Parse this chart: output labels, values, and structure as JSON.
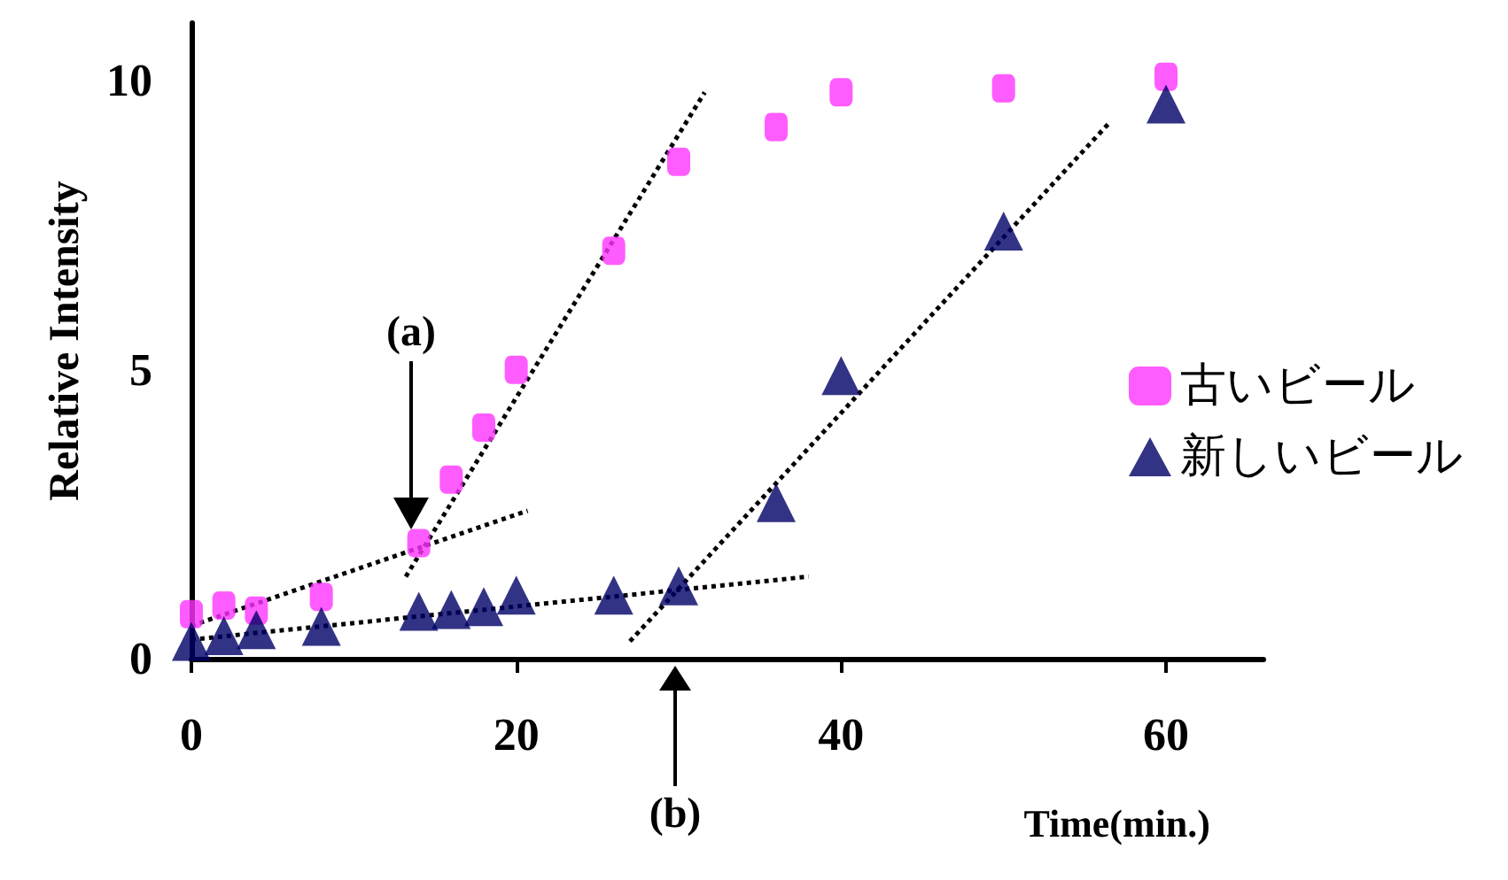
{
  "chart_data": {
    "type": "scatter",
    "xlabel": "Time(min.)",
    "ylabel": "Relative Intensity",
    "xlim": [
      0,
      66
    ],
    "xticks": [
      0,
      20,
      40,
      60
    ],
    "ylim": [
      0,
      11
    ],
    "yticks": [
      0,
      5,
      10
    ],
    "grid": false,
    "legend": "right",
    "series": [
      {
        "name": "古いビール",
        "color": "#ff33ff",
        "marker": "square",
        "x": [
          0,
          2,
          4,
          8,
          14,
          16,
          18,
          20,
          26,
          30,
          36,
          40,
          50,
          60
        ],
        "values": [
          0.77,
          0.92,
          0.83,
          1.07,
          2.0,
          3.1,
          4.0,
          5.0,
          7.06,
          8.6,
          9.2,
          9.8,
          9.87,
          10.07
        ]
      },
      {
        "name": "新しいビール",
        "color": "#000066",
        "marker": "triangle",
        "x": [
          0,
          2,
          4,
          8,
          14,
          16,
          18,
          20,
          26,
          30,
          36,
          40,
          50,
          60
        ],
        "values": [
          0.3,
          0.4,
          0.5,
          0.56,
          0.82,
          0.85,
          0.9,
          1.1,
          1.1,
          1.26,
          2.7,
          4.9,
          7.4,
          9.6
        ]
      },
      {
        "type": "line",
        "color": "#000000",
        "line_style": "dotted",
        "marker": "none",
        "x": [
          0,
          20.7
        ],
        "values": [
          0.57,
          2.56
        ]
      },
      {
        "type": "line",
        "color": "#000000",
        "line_style": "dotted",
        "marker": "none",
        "x": [
          13.2,
          31.6
        ],
        "values": [
          1.42,
          9.8
        ]
      },
      {
        "type": "line",
        "color": "#000000",
        "line_style": "dotted",
        "marker": "none",
        "x": [
          0,
          38
        ],
        "values": [
          0.33,
          1.42
        ]
      },
      {
        "type": "line",
        "color": "#000000",
        "line_style": "dotted",
        "marker": "none",
        "x": [
          27,
          56.6
        ],
        "values": [
          0.3,
          9.3
        ]
      }
    ],
    "annotations": [
      "(a)",
      "(b)"
    ]
  }
}
